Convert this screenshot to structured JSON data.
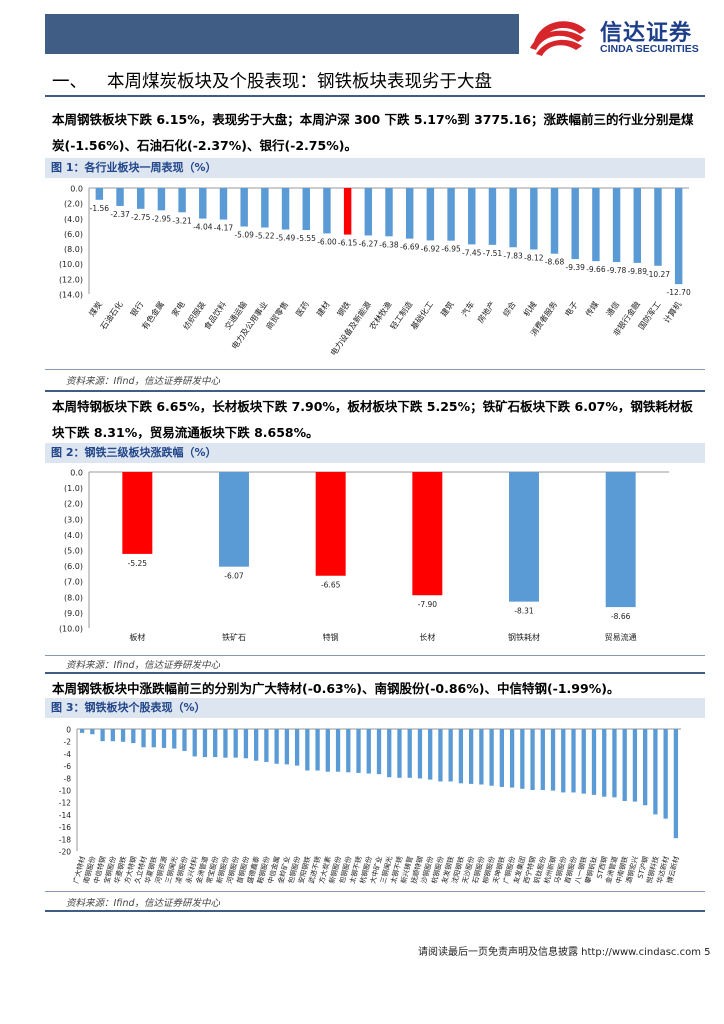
{
  "header": {
    "logo_cn": "信达证券",
    "logo_en": "CINDA SECURITIES"
  },
  "section": {
    "number": "一、",
    "title": "本周煤炭板块及个股表现：钢铁板块表现劣于大盘"
  },
  "paragraphs": {
    "p1_line1": "本周钢铁板块下跌 6.15%，表现劣于大盘；本周沪深 300 下跌 5.17%到 3775.16；涨跌幅前三的行业分别是煤",
    "p1_line2": "炭(-1.56%)、石油石化(-2.37%)、银行(-2.75%)。",
    "p2_line1": "本周特钢板块下跌 6.65%，长材板块下跌 7.90%，板材板块下跌 5.25%；铁矿石板块下跌 6.07%，钢铁耗材板",
    "p2_line2": "块下跌 8.31%，贸易流通板块下跌 8.658%。",
    "p3": "本周钢铁板块中涨跌幅前三的分别为广大特材(-0.63%)、南钢股份(-0.86%)、中信特钢(-1.99%)。"
  },
  "figures": {
    "fig1_title": "图 1：各行业板块一周表现（%）",
    "fig2_title": "图 2：钢铁三级板块涨跌幅（%）",
    "fig3_title": "图 3：钢铁板块个股表现（%）",
    "source": "资料来源：Ifind，信达证券研发中心"
  },
  "footer": {
    "text": "请阅读最后一页免责声明及信息披露 http://www.cindasc.com",
    "page": "5"
  },
  "colors": {
    "blue": "#5b9bd5",
    "red": "#ff0000",
    "header": "#3f5d85"
  },
  "chart_data": [
    {
      "type": "bar",
      "categories": [
        "煤炭",
        "石油石化",
        "银行",
        "有色金属",
        "家电",
        "纺织服装",
        "食品饮料",
        "交通运输",
        "电力及公用事业",
        "商贸零售",
        "医药",
        "建材",
        "钢铁",
        "电力设备及新能源",
        "农林牧渔",
        "轻工制造",
        "基础化工",
        "建筑",
        "汽车",
        "房地产",
        "综合",
        "机械",
        "消费者服务",
        "电子",
        "传媒",
        "通信",
        "非银行金融",
        "国防军工",
        "计算机"
      ],
      "values": [
        -1.56,
        -2.37,
        -2.75,
        -2.95,
        -3.21,
        -4.04,
        -4.17,
        -5.09,
        -5.22,
        -5.49,
        -5.55,
        -6.0,
        -6.15,
        -6.27,
        -6.38,
        -6.69,
        -6.92,
        -6.95,
        -7.45,
        -7.51,
        -7.83,
        -8.12,
        -8.68,
        -9.39,
        -9.66,
        -9.78,
        -9.89,
        -10.27,
        -12.7
      ],
      "data_labels": [
        "-1.56",
        "-2.37",
        "-2.75",
        "-2.95",
        "-3.21",
        "-4.04",
        "-4.17",
        "-5.09",
        "-5.22",
        "-5.49",
        "-5.55",
        "-6.00",
        "-6.15",
        "-6.27",
        "-6.38",
        "-6.69",
        "-6.92",
        "-6.95",
        "-7.45",
        "-7.51",
        "-7.83",
        "-8.12",
        "-8.68",
        "-9.39",
        "-9.66",
        "-9.78",
        "-9.89",
        "-10.27",
        "-12.70"
      ],
      "highlight": [
        "钢铁"
      ],
      "ylim": [
        -14,
        0
      ],
      "yticks": [
        0,
        -2,
        -4,
        -6,
        -8,
        -10,
        -12,
        -14
      ],
      "ytick_labels": [
        "0.0",
        "(2.0)",
        "(4.0)",
        "(6.0)",
        "(8.0)",
        "(10.0)",
        "(12.0)",
        "(14.0)"
      ],
      "grid": false
    },
    {
      "type": "bar",
      "categories": [
        "板材",
        "铁矿石",
        "特钢",
        "长材",
        "钢铁耗材",
        "贸易流通"
      ],
      "values": [
        -5.25,
        -6.07,
        -6.65,
        -7.9,
        -8.31,
        -8.66
      ],
      "data_labels": [
        "-5.25",
        "-6.07",
        "-6.65",
        "-7.90",
        "-8.31",
        "-8.66"
      ],
      "highlight": [
        "板材",
        "特钢",
        "长材"
      ],
      "ylim": [
        -10,
        0
      ],
      "yticks": [
        0,
        -1,
        -2,
        -3,
        -4,
        -5,
        -6,
        -7,
        -8,
        -9,
        -10
      ],
      "ytick_labels": [
        "0.0",
        "(1.0)",
        "(2.0)",
        "(3.0)",
        "(4.0)",
        "(5.0)",
        "(6.0)",
        "(7.0)",
        "(8.0)",
        "(9.0)",
        "(10.0)"
      ],
      "grid": false
    },
    {
      "type": "bar",
      "categories": [
        "广大特材",
        "南钢股份",
        "中信特钢",
        "宝钢股份",
        "华菱钢铁",
        "方大特钢",
        "久立特材",
        "华夏钢铁",
        "河钢资源",
        "三钢闽光",
        "凌钢股份",
        "永兴材料",
        "金洲管道",
        "常宝股份",
        "新钢股份",
        "河钢股份",
        "首钢股份",
        "盛德鑫泰",
        "鞍钢股份",
        "中信金属",
        "金岭矿业",
        "包钢股份",
        "安阳钢铁",
        "武进不锈",
        "方大炭素",
        "新钢股份",
        "包钢股份",
        "太钢不锈",
        "杭钢股份",
        "大中矿业",
        "三钢闽光",
        "太钢不锈",
        "新兴铸管",
        "抚顺特钢",
        "沙钢股份",
        "杭钢股份",
        "友发钢铁",
        "沈阳钢铁",
        "天沙股份",
        "石钢股份",
        "柳钢股份",
        "天坤钢铁",
        "广钢股份",
        "友发集团",
        "西宁特钢",
        "钒钛股份",
        "杭州新钢",
        "马钢股份",
        "首钢股份",
        "八一钢铁",
        "攀钢钒钛",
        "ST西钢",
        "金洲管道",
        "中南钢铁",
        "酒钢宏兴",
        "ST沪钢",
        "悦钢科技",
        "华达新材",
        "博云新材"
      ],
      "values": [
        -0.63,
        -0.86,
        -1.99,
        -2.0,
        -2.1,
        -2.3,
        -3.0,
        -3.0,
        -3.1,
        -3.2,
        -3.6,
        -4.5,
        -4.6,
        -4.6,
        -4.7,
        -4.7,
        -4.8,
        -5.2,
        -5.4,
        -5.7,
        -5.8,
        -6.0,
        -6.8,
        -6.8,
        -7.0,
        -7.0,
        -7.1,
        -7.2,
        -7.3,
        -7.4,
        -7.9,
        -8.0,
        -8.0,
        -8.1,
        -8.3,
        -8.6,
        -8.6,
        -8.9,
        -9.0,
        -9.1,
        -9.3,
        -9.5,
        -9.6,
        -9.8,
        -10.0,
        -10.0,
        -10.1,
        -10.4,
        -10.4,
        -10.6,
        -10.8,
        -11.1,
        -11.2,
        -11.8,
        -11.9,
        -12.5,
        -14.0,
        -14.7,
        -17.9
      ],
      "ylim": [
        -20,
        0
      ],
      "yticks": [
        0,
        -2,
        -4,
        -6,
        -8,
        -10,
        -12,
        -14,
        -16,
        -18,
        -20
      ],
      "ytick_labels": [
        "0",
        "-2",
        "-4",
        "-6",
        "-8",
        "-10",
        "-12",
        "-14",
        "-16",
        "-18",
        "-20"
      ],
      "grid": false
    }
  ]
}
